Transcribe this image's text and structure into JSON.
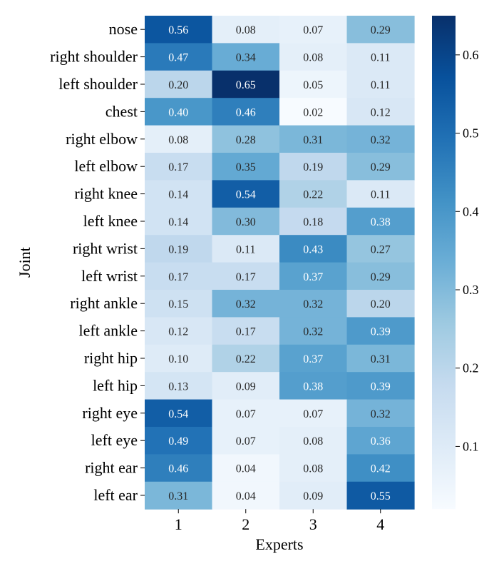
{
  "chart_data": {
    "type": "heatmap",
    "xlabel": "Experts",
    "ylabel": "Joint",
    "columns": [
      "1",
      "2",
      "3",
      "4"
    ],
    "rows": [
      "nose",
      "right shoulder",
      "left shoulder",
      "chest",
      "right elbow",
      "left elbow",
      "right knee",
      "left knee",
      "right wrist",
      "left wrist",
      "right ankle",
      "left ankle",
      "right hip",
      "left hip",
      "right eye",
      "left eye",
      "right ear",
      "left ear"
    ],
    "values": [
      [
        0.56,
        0.08,
        0.07,
        0.29
      ],
      [
        0.47,
        0.34,
        0.08,
        0.11
      ],
      [
        0.2,
        0.65,
        0.05,
        0.11
      ],
      [
        0.4,
        0.46,
        0.02,
        0.12
      ],
      [
        0.08,
        0.28,
        0.31,
        0.32
      ],
      [
        0.17,
        0.35,
        0.19,
        0.29
      ],
      [
        0.14,
        0.54,
        0.22,
        0.11
      ],
      [
        0.14,
        0.3,
        0.18,
        0.38
      ],
      [
        0.19,
        0.11,
        0.43,
        0.27
      ],
      [
        0.17,
        0.17,
        0.37,
        0.29
      ],
      [
        0.15,
        0.32,
        0.32,
        0.2
      ],
      [
        0.12,
        0.17,
        0.32,
        0.39
      ],
      [
        0.1,
        0.22,
        0.37,
        0.31
      ],
      [
        0.13,
        0.09,
        0.38,
        0.39
      ],
      [
        0.54,
        0.07,
        0.07,
        0.32
      ],
      [
        0.49,
        0.07,
        0.08,
        0.36
      ],
      [
        0.46,
        0.04,
        0.08,
        0.42
      ],
      [
        0.31,
        0.04,
        0.09,
        0.55
      ]
    ],
    "value_labels": [
      [
        "0.56",
        "0.08",
        "0.07",
        "0.29"
      ],
      [
        "0.47",
        "0.34",
        "0.08",
        "0.11"
      ],
      [
        "0.20",
        "0.65",
        "0.05",
        "0.11"
      ],
      [
        "0.40",
        "0.46",
        "0.02",
        "0.12"
      ],
      [
        "0.08",
        "0.28",
        "0.31",
        "0.32"
      ],
      [
        "0.17",
        "0.35",
        "0.19",
        "0.29"
      ],
      [
        "0.14",
        "0.54",
        "0.22",
        "0.11"
      ],
      [
        "0.14",
        "0.30",
        "0.18",
        "0.38"
      ],
      [
        "0.19",
        "0.11",
        "0.43",
        "0.27"
      ],
      [
        "0.17",
        "0.17",
        "0.37",
        "0.29"
      ],
      [
        "0.15",
        "0.32",
        "0.32",
        "0.20"
      ],
      [
        "0.12",
        "0.17",
        "0.32",
        "0.39"
      ],
      [
        "0.10",
        "0.22",
        "0.37",
        "0.31"
      ],
      [
        "0.13",
        "0.09",
        "0.38",
        "0.39"
      ],
      [
        "0.54",
        "0.07",
        "0.07",
        "0.32"
      ],
      [
        "0.49",
        "0.07",
        "0.08",
        "0.36"
      ],
      [
        "0.46",
        "0.04",
        "0.08",
        "0.42"
      ],
      [
        "0.31",
        "0.04",
        "0.09",
        "0.55"
      ]
    ],
    "colormap": "Blues",
    "colorbar": {
      "vmin": 0.02,
      "vmax": 0.65,
      "ticks": [
        0.1,
        0.2,
        0.3,
        0.4,
        0.5,
        0.6
      ],
      "tick_labels": [
        "0.1",
        "0.2",
        "0.3",
        "0.4",
        "0.5",
        "0.6"
      ]
    },
    "colors": {
      "blues_stops": [
        "#f7fbff",
        "#deebf7",
        "#c6dbef",
        "#9ecae1",
        "#6baed6",
        "#4292c6",
        "#2171b5",
        "#08519c",
        "#08306b"
      ],
      "text_dark": "#262626",
      "text_light": "#ffffff"
    }
  }
}
